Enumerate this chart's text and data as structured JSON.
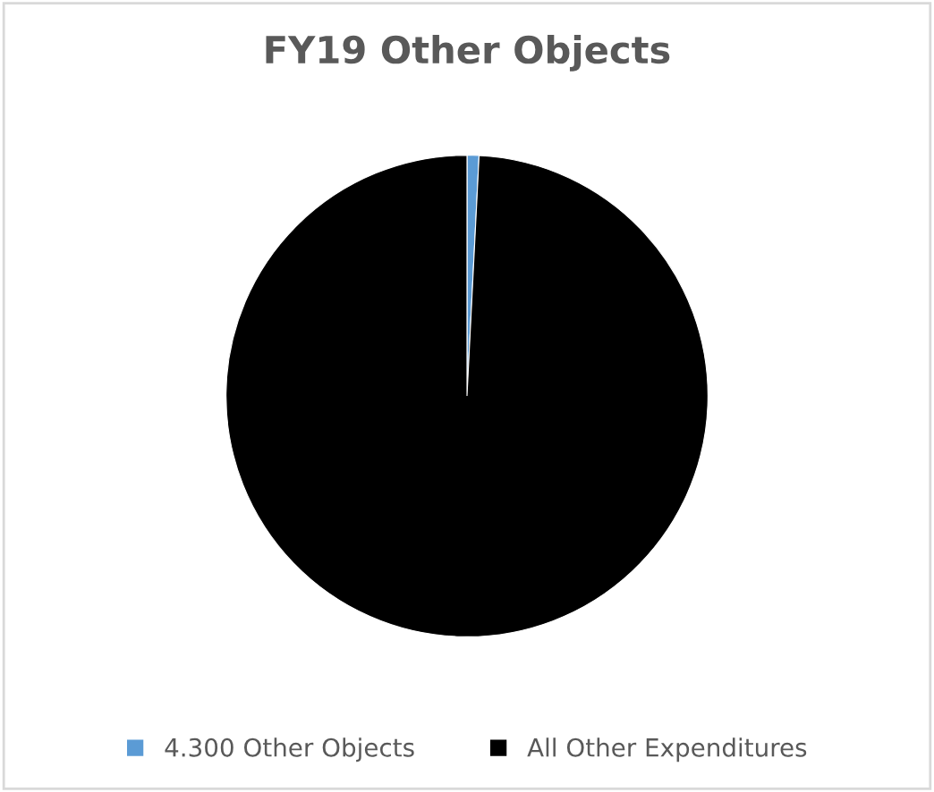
{
  "chart_data": {
    "type": "pie",
    "title": "FY19 Other Objects",
    "categories": [
      "4.300 Other Objects",
      "All Other Expenditures"
    ],
    "values": [
      0.8,
      99.2
    ],
    "colors": [
      "#5b9bd5",
      "#000000"
    ],
    "legend": "bottom"
  }
}
